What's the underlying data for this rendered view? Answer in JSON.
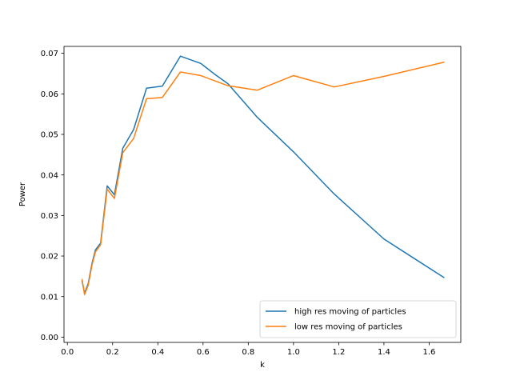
{
  "chart_data": {
    "type": "line",
    "xlabel": "k",
    "ylabel": "Power",
    "xlim": [
      -0.015,
      1.74
    ],
    "ylim": [
      -0.0013,
      0.0717
    ],
    "xticks": [
      0.0,
      0.2,
      0.4,
      0.6,
      0.8,
      1.0,
      1.2,
      1.4,
      1.6
    ],
    "xtick_labels": [
      "0.0",
      "0.2",
      "0.4",
      "0.6",
      "0.8",
      "1.0",
      "1.2",
      "1.4",
      "1.6"
    ],
    "yticks": [
      0.0,
      0.01,
      0.02,
      0.03,
      0.04,
      0.05,
      0.06,
      0.07
    ],
    "ytick_labels": [
      "0.00",
      "0.01",
      "0.02",
      "0.03",
      "0.04",
      "0.05",
      "0.06",
      "0.07"
    ],
    "grid": false,
    "legend": "lower right",
    "series": [
      {
        "name": "high res moving of particles",
        "color": "#1f77b4",
        "x": [
          0.065,
          0.076,
          0.092,
          0.109,
          0.124,
          0.147,
          0.176,
          0.208,
          0.245,
          0.293,
          0.35,
          0.42,
          0.5,
          0.59,
          0.65,
          0.71,
          0.84,
          1.0,
          1.18,
          1.4,
          1.665
        ],
        "y": [
          0.0138,
          0.0108,
          0.0132,
          0.0182,
          0.0215,
          0.0232,
          0.0373,
          0.0351,
          0.0466,
          0.0512,
          0.0614,
          0.0619,
          0.0693,
          0.0675,
          0.0649,
          0.0625,
          0.0542,
          0.0457,
          0.0353,
          0.0242,
          0.0147
        ]
      },
      {
        "name": "low res moving of particles",
        "color": "#ff7f0e",
        "x": [
          0.065,
          0.076,
          0.092,
          0.109,
          0.124,
          0.147,
          0.176,
          0.208,
          0.245,
          0.293,
          0.35,
          0.42,
          0.5,
          0.59,
          0.71,
          0.84,
          1.0,
          1.18,
          1.4,
          1.665
        ],
        "y": [
          0.0142,
          0.0105,
          0.0128,
          0.0178,
          0.021,
          0.0228,
          0.0365,
          0.0342,
          0.0455,
          0.049,
          0.0588,
          0.0591,
          0.0654,
          0.0645,
          0.062,
          0.0609,
          0.0645,
          0.0617,
          0.0643,
          0.0678
        ]
      }
    ]
  }
}
